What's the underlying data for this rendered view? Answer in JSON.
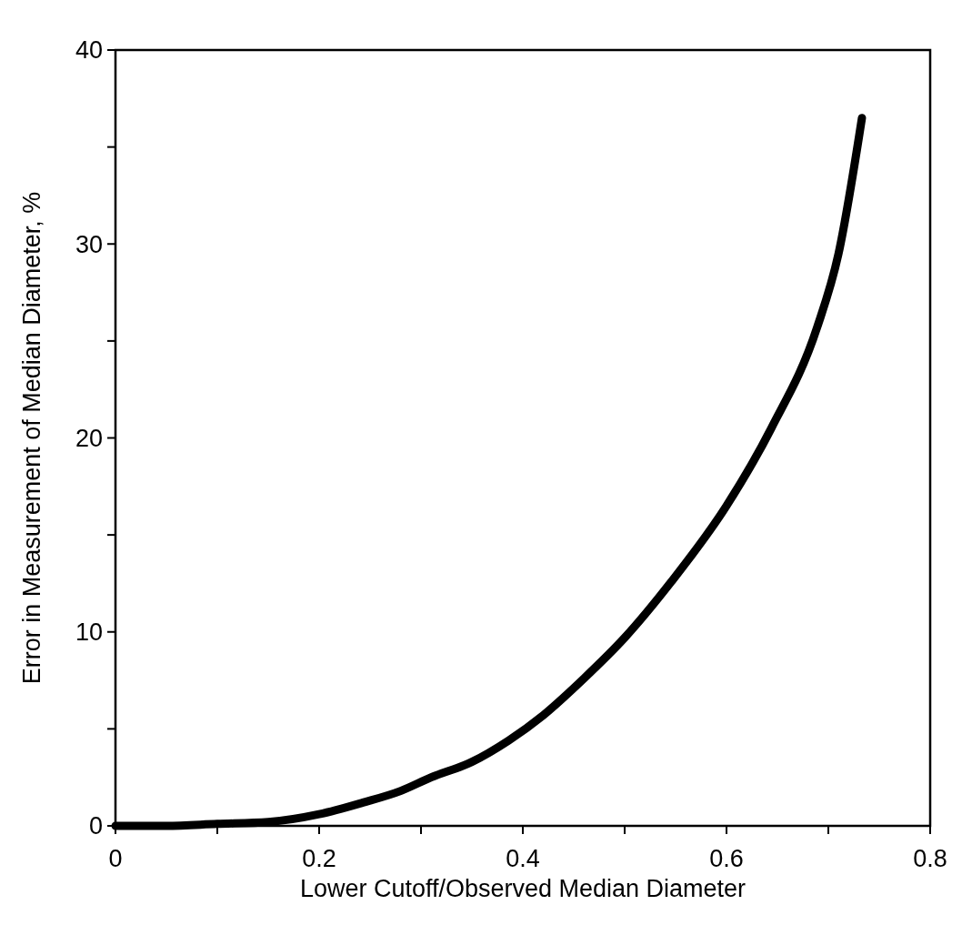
{
  "chart_data": {
    "type": "line",
    "xlabel": "Lower Cutoff/Observed Median Diameter",
    "ylabel": "Error in Measurement of Median Diameter, %",
    "series": [
      {
        "color": "#000000",
        "x": [
          0,
          0.05,
          0.1,
          0.15,
          0.2,
          0.243,
          0.28,
          0.31,
          0.35,
          0.386,
          0.42,
          0.46,
          0.5,
          0.546,
          0.6,
          0.644,
          0.689,
          0.71,
          0.733
        ],
        "values": [
          0,
          0,
          0.1,
          0.2,
          0.6,
          1.2,
          1.8,
          2.5,
          3.3,
          4.4,
          5.7,
          7.6,
          9.7,
          12.6,
          16.5,
          20.5,
          25.7,
          29.5,
          36.5
        ]
      }
    ],
    "xlim": [
      0,
      0.8
    ],
    "ylim": [
      0,
      40
    ],
    "xticks": [
      0,
      {
        "value": 0.1,
        "label": null
      },
      0.2,
      {
        "value": 0.3,
        "label": null
      },
      0.4,
      {
        "value": 0.5,
        "label": null
      },
      0.6,
      {
        "value": 0.7,
        "label": null
      },
      0.8
    ],
    "yticks": [
      0,
      {
        "value": 5,
        "label": null
      },
      10,
      {
        "value": 15,
        "label": null
      },
      20,
      {
        "value": 25,
        "label": null
      },
      30,
      {
        "value": 35,
        "label": null
      },
      40
    ],
    "grid": false,
    "line_style": "solid"
  }
}
